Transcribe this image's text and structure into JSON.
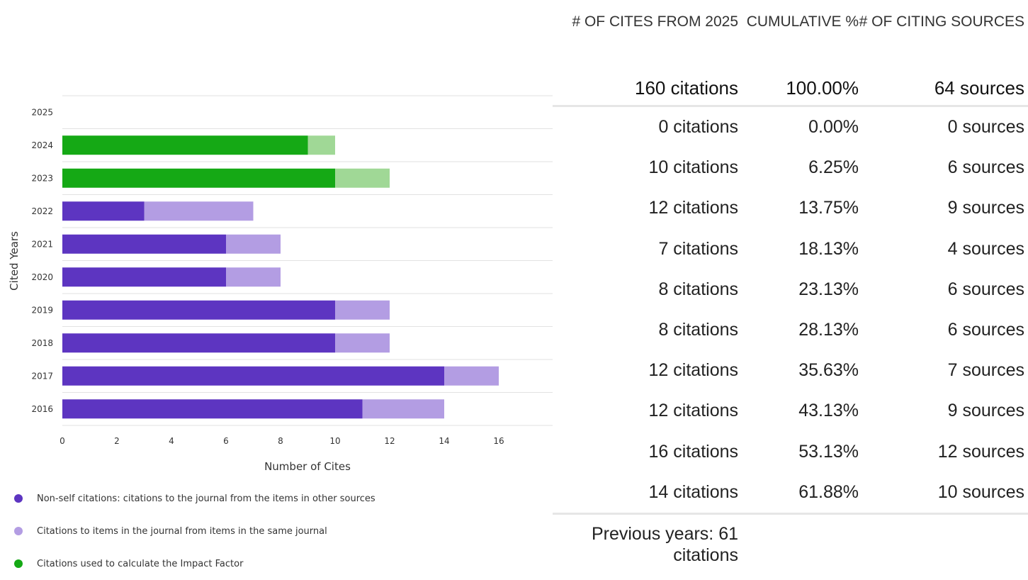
{
  "chart_data": {
    "type": "bar",
    "orientation": "horizontal",
    "stacked": true,
    "categories": [
      "2025",
      "2024",
      "2023",
      "2022",
      "2021",
      "2020",
      "2019",
      "2018",
      "2017",
      "2016"
    ],
    "series": [
      {
        "name": "Non-self citations: citations to the journal from the items in other sources",
        "values": [
          0,
          0,
          0,
          3,
          6,
          6,
          10,
          10,
          14,
          11
        ]
      },
      {
        "name": "Citations to items in the journal from items in the same journal",
        "values": [
          0,
          0,
          0,
          4,
          2,
          2,
          2,
          2,
          2,
          3
        ]
      },
      {
        "name": "Citations used to calculate the Impact Factor",
        "values": [
          0,
          9,
          10,
          0,
          0,
          0,
          0,
          0,
          0,
          0
        ]
      },
      {
        "values": [
          0,
          1,
          2,
          0,
          0,
          0,
          0,
          0,
          0,
          0
        ]
      }
    ],
    "xlabel": "Number of Cites",
    "ylabel": "Cited Years",
    "xticks": [
      "0",
      "2",
      "4",
      "6",
      "8",
      "10",
      "12",
      "14",
      "16"
    ],
    "xlim": [
      0,
      18
    ],
    "grid": "horizontal",
    "legend_position": "bottom-left",
    "colors": {
      "non_self": "#5d35c1",
      "self": "#b39de3",
      "impact": "#15a915",
      "impact_light": "#a0d896",
      "grid": "#e2e2e2"
    }
  },
  "legend": [
    {
      "label": "Non-self citations: citations to the journal from the items in other sources",
      "color": "#5d35c1"
    },
    {
      "label": "Citations to items in the journal from items in the same journal",
      "color": "#b39de3"
    },
    {
      "label": "Citations used to calculate the Impact Factor",
      "color": "#15a915"
    }
  ],
  "table": {
    "headers": [
      "# OF CITES FROM 2025",
      "CUMULATIVE %",
      "# OF CITING SOURCES"
    ],
    "total": {
      "cites": "160 citations",
      "cumulative": "100.00%",
      "sources": "64 sources"
    },
    "rows": [
      {
        "cites": "0 citations",
        "cumulative": "0.00%",
        "sources": "0 sources"
      },
      {
        "cites": "10 citations",
        "cumulative": "6.25%",
        "sources": "6 sources"
      },
      {
        "cites": "12 citations",
        "cumulative": "13.75%",
        "sources": "9 sources"
      },
      {
        "cites": "7 citations",
        "cumulative": "18.13%",
        "sources": "4 sources"
      },
      {
        "cites": "8 citations",
        "cumulative": "23.13%",
        "sources": "6 sources"
      },
      {
        "cites": "8 citations",
        "cumulative": "28.13%",
        "sources": "6 sources"
      },
      {
        "cites": "12 citations",
        "cumulative": "35.63%",
        "sources": "7 sources"
      },
      {
        "cites": "12 citations",
        "cumulative": "43.13%",
        "sources": "9 sources"
      },
      {
        "cites": "16 citations",
        "cumulative": "53.13%",
        "sources": "12 sources"
      },
      {
        "cites": "14 citations",
        "cumulative": "61.88%",
        "sources": "10 sources"
      }
    ],
    "previous_years": "Previous years: 61 citations"
  }
}
